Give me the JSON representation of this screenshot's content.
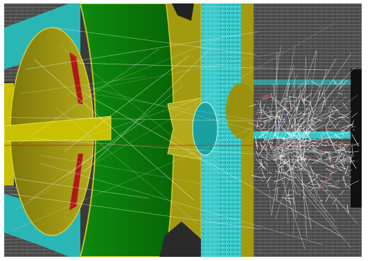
{
  "scene": {
    "kind": "detector-event-display",
    "colors": {
      "frame": "#ffffff",
      "ecal_green": "#0a7a0a",
      "endcap_olive": "#a39a10",
      "yoke_cyan": "#2fc8c8",
      "calorimeter_grey": "#5a5a5a",
      "beam_pipe_yellow": "#c8c000",
      "tracks": "#ffffff",
      "beam_line": "#cc2222",
      "magnet_red": "#b01818"
    },
    "icons": {
      "tracks": "particle-tracks-icon",
      "shower": "hadronic-shower-icon"
    }
  }
}
